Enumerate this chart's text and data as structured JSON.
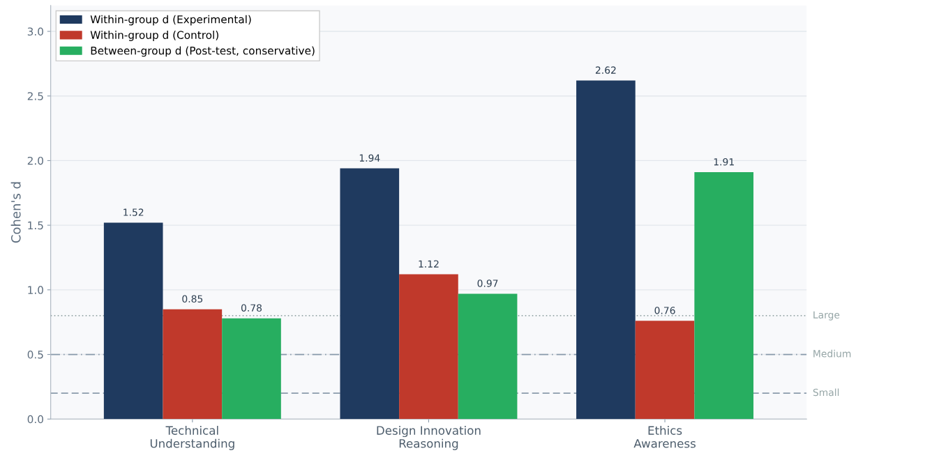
{
  "chart_data": {
    "type": "bar",
    "ylabel": "Cohen's d",
    "categories": [
      "Technical\nUnderstanding",
      "Design Innovation\nReasoning",
      "Ethics\nAwareness"
    ],
    "series": [
      {
        "name": "Within-group d (Experimental)",
        "color": "#1f3a5f",
        "values": [
          1.52,
          1.94,
          2.62
        ]
      },
      {
        "name": "Within-group d (Control)",
        "color": "#c0392b",
        "values": [
          0.85,
          1.12,
          0.76
        ]
      },
      {
        "name": "Between-group d (Post-test, conservative)",
        "color": "#27ae60",
        "values": [
          0.78,
          0.97,
          1.91
        ]
      }
    ],
    "ylim": [
      0,
      3.2
    ],
    "yticks": [
      {
        "value": 0,
        "label": "0.0"
      },
      {
        "value": 0.5,
        "label": "0.5"
      },
      {
        "value": 1,
        "label": "1.0"
      },
      {
        "value": 1.5,
        "label": "1.5"
      },
      {
        "value": 2,
        "label": "2.0"
      },
      {
        "value": 2.5,
        "label": "2.5"
      },
      {
        "value": 3,
        "label": "3.0"
      }
    ],
    "ref_lines": [
      {
        "axis": "y",
        "value": 0.8,
        "label": "Large",
        "color": "#95a5a6",
        "line_style": "dotted"
      },
      {
        "axis": "y",
        "value": 0.5,
        "label": "Medium",
        "color": "#8a9bab",
        "line_style": "dashdot"
      },
      {
        "axis": "y",
        "value": 0.2,
        "label": "Small",
        "color": "#8a9bab",
        "line_style": "dashed"
      }
    ],
    "data_labels": true,
    "grid": "y",
    "legend": "top left"
  }
}
